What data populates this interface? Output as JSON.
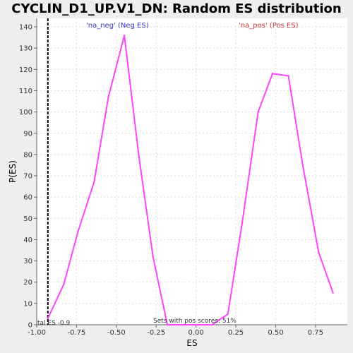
{
  "chart_data": {
    "type": "line",
    "title": "CYCLIN_D1_UP.V1_DN: Random ES distribution",
    "xlabel": "ES",
    "ylabel": "P(ES)",
    "xlim": [
      -1.0,
      0.95
    ],
    "ylim": [
      0,
      144
    ],
    "xticks": [
      {
        "value": -1.0,
        "label": "-1.00"
      },
      {
        "value": -0.75,
        "label": "-0.75"
      },
      {
        "value": -0.5,
        "label": "-0.50"
      },
      {
        "value": -0.25,
        "label": "-0.25"
      },
      {
        "value": 0.0,
        "label": "0.00"
      },
      {
        "value": 0.25,
        "label": "0.25"
      },
      {
        "value": 0.5,
        "label": "0.50"
      },
      {
        "value": 0.75,
        "label": "0.75"
      }
    ],
    "yticks": [
      0,
      10,
      20,
      30,
      40,
      50,
      60,
      70,
      80,
      90,
      100,
      110,
      120,
      130,
      140
    ],
    "grid": true,
    "series": [
      {
        "color": "#ff44ff",
        "x": [
          -0.93,
          -0.83,
          -0.74,
          -0.64,
          -0.55,
          -0.45,
          -0.36,
          -0.27,
          -0.18,
          -0.09,
          0.01,
          0.1,
          0.2,
          0.29,
          0.39,
          0.48,
          0.58,
          0.67,
          0.77,
          0.86
        ],
        "y": [
          3,
          19,
          44,
          67,
          107,
          136,
          80,
          32,
          0,
          0,
          0,
          0,
          5,
          48,
          100,
          118,
          117,
          75,
          34,
          15
        ]
      }
    ],
    "annotations": {
      "neg_label": "'na_neg' (Neg ES)",
      "pos_label": "'na_pos' (Pos ES)",
      "actual_es_label": "tal ES -0.9",
      "actual_es_value": -0.93,
      "pos_scores_label": "Sets with pos scores: 51%"
    },
    "colors": {
      "line": "#ff44ff",
      "neg_legend": "#3333cc",
      "pos_legend": "#cc3333",
      "plot_background": "#ffffff",
      "page_background": "#eeeeee"
    }
  }
}
